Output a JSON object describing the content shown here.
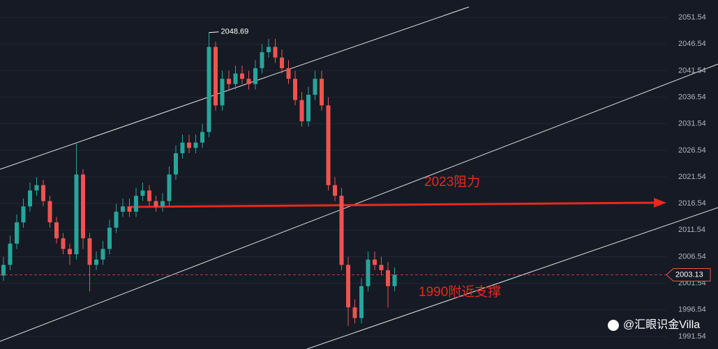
{
  "chart_data": {
    "type": "candlestick",
    "open": [
      2003,
      2005,
      2009,
      2013,
      2016,
      2019,
      2020,
      2017,
      2013,
      2010,
      2008,
      2007,
      2022,
      2010,
      2005,
      2006,
      2008,
      2012,
      2015,
      2016,
      2015,
      2018,
      2019,
      2017,
      2016,
      2017,
      2022,
      2026,
      2028,
      2027,
      2028,
      2030,
      2046,
      2035,
      2040,
      2039,
      2041,
      2040,
      2039,
      2042,
      2045,
      2046,
      2044,
      2042,
      2040,
      2036,
      2032,
      2037,
      2040,
      2035,
      2020,
      2018,
      2005,
      1997,
      1995,
      2001,
      2006,
      2005,
      2004,
      2001
    ],
    "high": [
      2006.5,
      2010.5,
      2014.5,
      2017.5,
      2020.5,
      2021.5,
      2021,
      2018,
      2014,
      2011,
      2009,
      2028,
      2023,
      2011,
      2007.5,
      2009.5,
      2013.5,
      2016.5,
      2017.5,
      2017.5,
      2019.5,
      2020.5,
      2020,
      2018,
      2018.5,
      2023.5,
      2027.5,
      2029.5,
      2029.5,
      2029.5,
      2031.5,
      2048.69,
      2047,
      2041.5,
      2041.5,
      2042.5,
      2042.5,
      2041.5,
      2043.5,
      2046.5,
      2047.5,
      2047.5,
      2045.5,
      2043.5,
      2041.5,
      2037.5,
      2038.5,
      2041.5,
      2041.5,
      2036.5,
      2021.5,
      2019.5,
      2006.5,
      1998.5,
      2002.5,
      2007.5,
      2007.5,
      2006.5,
      2005.5,
      2004.5
    ],
    "low": [
      2002,
      2004,
      2008,
      2012,
      2015,
      2018,
      2016,
      2012,
      2009,
      2007,
      2005,
      2006,
      2008,
      2000,
      2004,
      2005,
      2007,
      2011,
      2014,
      2014,
      2014,
      2017,
      2016,
      2015,
      2015,
      2016,
      2021,
      2025,
      2026,
      2026,
      2027,
      2029,
      2034,
      2034,
      2038,
      2038,
      2039,
      2038,
      2038,
      2041,
      2044,
      2043,
      2041,
      2039,
      2035,
      2031,
      2031,
      2036,
      2034,
      2019,
      2017,
      2004,
      1993.5,
      1994,
      1994,
      2000,
      2004,
      2003,
      1997,
      2000
    ],
    "close": [
      2005,
      2009,
      2013,
      2016,
      2019,
      2020,
      2017,
      2013,
      2010,
      2008,
      2007,
      2022,
      2010,
      2005,
      2006,
      2008,
      2012,
      2015,
      2016,
      2015,
      2018,
      2019,
      2017,
      2016,
      2017,
      2022,
      2026,
      2028,
      2027,
      2028,
      2030,
      2046,
      2035,
      2040,
      2039,
      2041,
      2040,
      2039,
      2042,
      2045,
      2046,
      2044,
      2042,
      2040,
      2036,
      2032,
      2037,
      2040,
      2035,
      2020,
      2018,
      2005,
      1997,
      1995,
      2001,
      2006,
      2005,
      2004,
      2001,
      2003.13
    ],
    "up_color": "#26a69a",
    "down_color": "#ef5350",
    "ylim": [
      1989.18,
      2054.82
    ],
    "yticks": [
      1991.54,
      1996.54,
      2001.54,
      2006.54,
      2011.54,
      2016.54,
      2021.54,
      2026.54,
      2031.54,
      2036.54,
      2041.54,
      2046.54,
      2051.54
    ],
    "grid": true,
    "last_price": 2003.13,
    "resistance_label": "2023阻力",
    "support_label": "1990附近支撑",
    "watermark": "@汇眼识金Villa"
  }
}
